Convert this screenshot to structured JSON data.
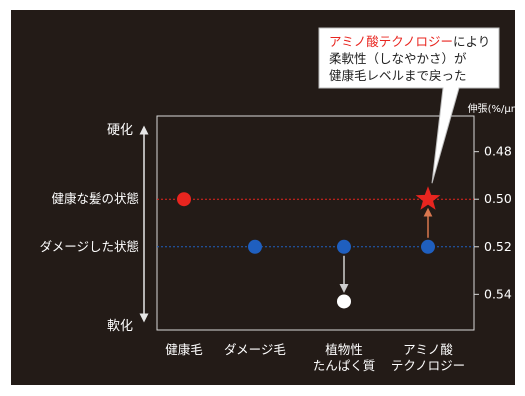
{
  "chart_data": {
    "type": "scatter",
    "title": "",
    "categories": [
      "健康毛",
      "ダメージ毛",
      "植物性\nたんぱく質",
      "アミノ酸\nテクノロジー"
    ],
    "y_unit_label": "伸張(%/μm)",
    "y_ticks": [
      0.48,
      0.5,
      0.52,
      0.54
    ],
    "ylim": [
      0.465,
      0.555
    ],
    "y_inverted": true,
    "grid": false,
    "left_axis": {
      "top_label": "硬化",
      "bottom_label": "軟化"
    },
    "reference_lines": [
      {
        "label": "健康な髪の状態",
        "value": 0.5,
        "color": "#e8251f"
      },
      {
        "label": "ダメージした状態",
        "value": 0.52,
        "color": "#1f5fbf"
      }
    ],
    "points": [
      {
        "category": "健康毛",
        "value": 0.5,
        "color": "#e8251f",
        "marker": "circle"
      },
      {
        "category": "ダメージ毛",
        "value": 0.52,
        "color": "#1f5fbf",
        "marker": "circle"
      },
      {
        "category": "植物性\nたんぱく質",
        "value": 0.52,
        "color": "#1f5fbf",
        "marker": "circle"
      },
      {
        "category": "植物性\nたんぱく質",
        "value": 0.543,
        "color": "#ffffff",
        "marker": "circle"
      },
      {
        "category": "アミノ酸\nテクノロジー",
        "value": 0.52,
        "color": "#1f5fbf",
        "marker": "circle"
      },
      {
        "category": "アミノ酸\nテクノロジー",
        "value": 0.5,
        "color": "#e8251f",
        "marker": "star"
      }
    ],
    "change_arrows": [
      {
        "category": "植物性\nたんぱく質",
        "from": 0.52,
        "to": 0.543,
        "color": "#cfcfcf"
      },
      {
        "category": "アミノ酸\nテクノロジー",
        "from": 0.52,
        "to": 0.5,
        "color": "#d9774f"
      }
    ],
    "callout": {
      "highlight": "アミノ酸テクノロジー",
      "lines": [
        "アミノ酸テクノロジーにより",
        "柔軟性（しなやかさ）が",
        "健康毛レベルまで戻った"
      ],
      "highlight_color": "#e8251f",
      "points_to": "アミノ酸\nテクノロジー"
    }
  }
}
